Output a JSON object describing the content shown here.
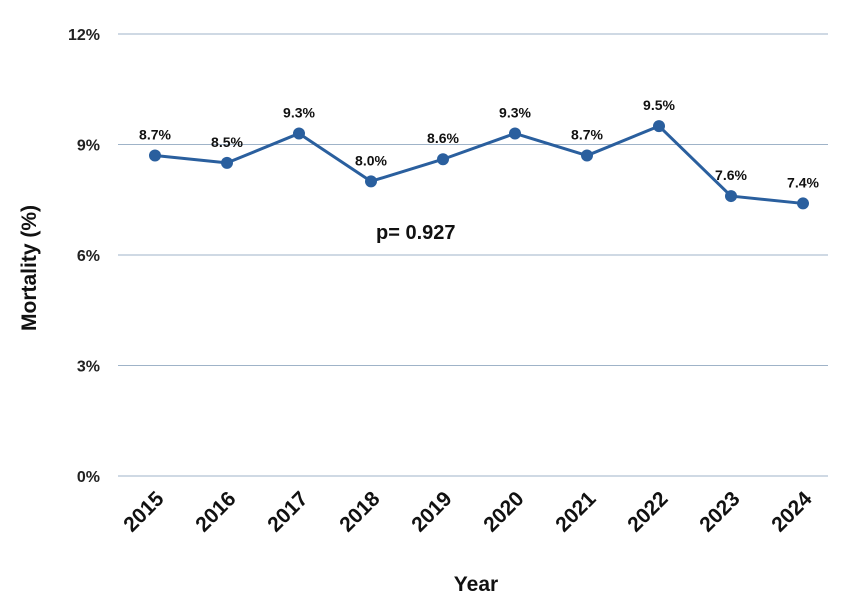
{
  "chart_data": {
    "type": "line",
    "title": "",
    "xlabel": "Year",
    "ylabel": "Mortality (%)",
    "ylim": [
      0,
      12
    ],
    "yticks": [
      {
        "value": 0,
        "label": "0%"
      },
      {
        "value": 3,
        "label": "3%"
      },
      {
        "value": 6,
        "label": "6%"
      },
      {
        "value": 9,
        "label": "9%"
      },
      {
        "value": 12,
        "label": "12%"
      }
    ],
    "grid": true,
    "categories": [
      "2015",
      "2016",
      "2017",
      "2018",
      "2019",
      "2020",
      "2021",
      "2022",
      "2023",
      "2024"
    ],
    "series": [
      {
        "values": [
          8.7,
          8.5,
          9.3,
          8.0,
          8.6,
          9.3,
          8.7,
          9.5,
          7.6,
          7.4
        ],
        "labels": [
          "8.7%",
          "8.5%",
          "9.3%",
          "8.0%",
          "8.6%",
          "9.3%",
          "8.7%",
          "9.5%",
          "7.6%",
          "7.4%"
        ],
        "color": "#2a5f9e"
      }
    ],
    "annotation": "p= 0.927"
  }
}
